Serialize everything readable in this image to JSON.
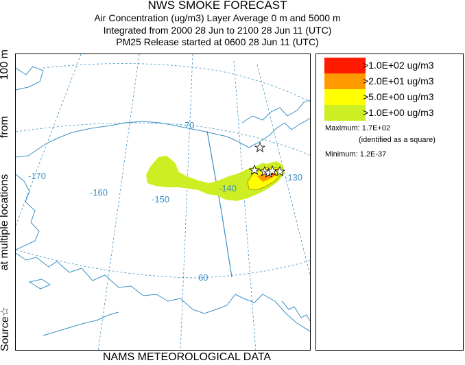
{
  "header": {
    "title": "NWS SMOKE FORECAST",
    "line2": "Air Concentration (ug/m3) Layer Average    0 m and  5000 m",
    "line3": "Integrated from 2000 28 Jun to 2100 28 Jun 11 (UTC)",
    "line4": "PM25 Release started at 0600 28 Jun 11 (UTC)"
  },
  "side_label": {
    "source": "Source",
    "at_multiple": "at multiple locations",
    "from": "from",
    "height": "100 m"
  },
  "map": {
    "lon_labels": [
      "-170",
      "-160",
      "-150",
      "-140",
      "-130"
    ],
    "lat_labels": [
      "70",
      "60"
    ],
    "colors": {
      "coast": "#3a8fc4",
      "grid": "#3a8fc4",
      "level_100": "#ff1a00",
      "level_20": "#ff9900",
      "level_5": "#ffff00",
      "level_1": "#ccee22"
    }
  },
  "legend": {
    "levels": [
      {
        "label": ">1.0E+02 ug/m3",
        "color": "#ff1a00"
      },
      {
        "label": ">2.0E+01 ug/m3",
        "color": "#ff9900"
      },
      {
        "label": ">5.0E+00 ug/m3",
        "color": "#ffff00"
      },
      {
        "label": ">1.0E+00 ug/m3",
        "color": "#ccee22"
      }
    ],
    "maximum": "Maximum: 1.7E+02",
    "maximum_note": "(identified as a square)",
    "minimum": "Minimum: 1.2E-37"
  },
  "footer": "NAMS METEOROLOGICAL DATA"
}
